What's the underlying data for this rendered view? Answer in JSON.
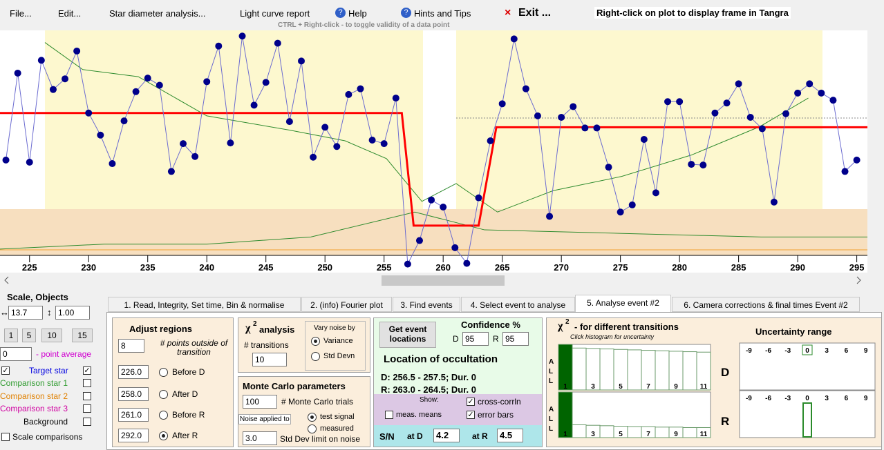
{
  "menu": {
    "file": "File...",
    "edit": "Edit...",
    "star_diameter": "Star diameter analysis...",
    "light_curve": "Light curve report",
    "help": "Help",
    "hints": "Hints and Tips",
    "exit": "Exit ...",
    "right_click": "Right-click on plot to display frame in Tangra"
  },
  "hint": "CTRL + Right-click  -  to toggle validity of a data point",
  "plot": {
    "type": "scatter",
    "xlim": [
      222.5,
      295.9
    ],
    "ylim": [
      0,
      340
    ],
    "xticks": [
      225,
      230,
      235,
      240,
      245,
      250,
      255,
      260,
      265,
      270,
      275,
      280,
      285,
      290,
      295
    ],
    "target": {
      "name": "Target star",
      "color": "#00008b",
      "x": [
        223,
        224,
        225,
        226,
        227,
        228,
        229,
        230,
        231,
        232,
        233,
        234,
        235,
        236,
        237,
        238,
        239,
        240,
        241,
        242,
        243,
        244,
        245,
        246,
        247,
        248,
        249,
        250,
        251,
        252,
        253,
        254,
        255,
        256,
        257,
        258,
        259,
        260,
        261,
        262,
        263,
        264,
        265,
        266,
        267,
        268,
        269,
        270,
        271,
        272,
        273,
        274,
        275,
        276,
        277,
        278,
        279,
        280,
        281,
        282,
        283,
        284,
        285,
        286,
        287,
        288,
        289,
        290,
        291,
        292,
        293,
        294,
        295
      ],
      "values": [
        158,
        280,
        155,
        298,
        257,
        272,
        311,
        224,
        193,
        153,
        213,
        254,
        273,
        263,
        142,
        181,
        163,
        268,
        318,
        182,
        332,
        235,
        267,
        322,
        212,
        297,
        162,
        204,
        177,
        250,
        258,
        186,
        181,
        245,
        12,
        45,
        102,
        92,
        35,
        13,
        105,
        185,
        237,
        328,
        258,
        220,
        79,
        218,
        233,
        203,
        203,
        148,
        85,
        95,
        187,
        112,
        240,
        240,
        152,
        151,
        224,
        238,
        265,
        218,
        202,
        99,
        223,
        252,
        265,
        252,
        242,
        142,
        158
      ]
    },
    "model": {
      "color": "#ff0000",
      "x": [
        222.5,
        256.5,
        257.5,
        263.0,
        264.5,
        295.9
      ],
      "values": [
        224,
        224,
        66,
        66,
        204,
        204
      ]
    },
    "comparison": [
      {
        "name": "Comparison star 1",
        "color": "#2e8b2e",
        "x": [
          226.3,
          229.5,
          234.2,
          240.0,
          247.0,
          251.7,
          255.2,
          258.2,
          261.1,
          264.6,
          269.3,
          275.1,
          281.0,
          286.8,
          290.9
        ],
        "values": [
          323,
          285,
          275,
          220,
          200,
          185,
          160,
          100,
          125,
          85,
          115,
          135,
          165,
          205,
          245
        ]
      },
      {
        "name": "Comparison star 2",
        "color": "#2e8b2e",
        "x": [
          222.5,
          231.3,
          240.0,
          248.8,
          257.6,
          263.5,
          275.2,
          286.9,
          295.9
        ],
        "values": [
          33,
          40,
          40,
          50,
          85,
          60,
          55,
          50,
          50
        ]
      }
    ]
  },
  "left": {
    "title": "Scale,  Objects",
    "hscale": "13.7",
    "vscale": "1.00",
    "buttons": [
      "1",
      "5",
      "10",
      "15"
    ],
    "avg": "0",
    "avg_label": "- point average",
    "target": "Target star",
    "comp1": "Comparison star 1",
    "comp2": "Comparison star 2",
    "comp3": "Comparison star 3",
    "background": "Background",
    "scale_comp": "Scale comparisons"
  },
  "tabs": [
    "1. Read, Integrity, Set time, Bin & normalise",
    "2. (info) Fourier plot",
    "3. Find events",
    "4. Select event to analyse",
    "5. Analyse event #2",
    "6. Camera corrections & final times Event #2"
  ],
  "adjust": {
    "title": "Adjust regions",
    "points": "8",
    "points_label": "# points outside of transition",
    "rows": [
      [
        "226.0",
        "Before D"
      ],
      [
        "258.0",
        "After D"
      ],
      [
        "261.0",
        "Before R"
      ],
      [
        "292.0",
        "After R"
      ]
    ]
  },
  "chi": {
    "chi": "χ",
    "sup": "2",
    "title": "analysis",
    "transitions_label": "# transitions",
    "transitions": "10",
    "vary": "Vary noise by",
    "variance": "Variance",
    "stddev": "Std Devn"
  },
  "monte": {
    "title": "Monte Carlo parameters",
    "trials": "100",
    "trials_label": "# Monte Carlo trials",
    "noise": "Noise applied to",
    "test": "test signal",
    "measured": "measured",
    "limit": "3.0",
    "limit_label": "Std Dev limit on noise"
  },
  "event": {
    "button": "Get event locations",
    "confidence": "Confidence %",
    "d": "D",
    "d_val": "95",
    "r": "R",
    "r_val": "95",
    "location": "Location of occultation",
    "d_loc": "D: 256.5 - 257.5; Dur. 0",
    "r_loc": "R: 263.0 - 264.5; Dur. 0",
    "show": "Show:",
    "cross": "cross-corrln",
    "means": "meas. means",
    "errors": "error bars",
    "sn": "S/N",
    "at_d": "at D",
    "sn_d": "4.2",
    "at_r": "at R",
    "sn_r": "4.5"
  },
  "hist": {
    "chi": "χ",
    "sup": "2",
    "title": "- for different transitions",
    "subtitle": "Click histogram for uncertainty",
    "all": [
      "A",
      "L",
      "L"
    ],
    "labels": [
      "1",
      "3",
      "5",
      "7",
      "9",
      "11"
    ],
    "d": "D",
    "r": "R",
    "d_values": [
      100,
      92,
      91,
      90,
      89,
      88,
      87,
      86,
      85,
      84,
      83
    ],
    "r_values": [
      100,
      28,
      27,
      26,
      25,
      24,
      24,
      23,
      23,
      22,
      22
    ]
  },
  "uncert": {
    "title": "Uncertainty range",
    "ticks": [
      -9,
      -6,
      -3,
      0,
      3,
      6,
      9
    ]
  }
}
